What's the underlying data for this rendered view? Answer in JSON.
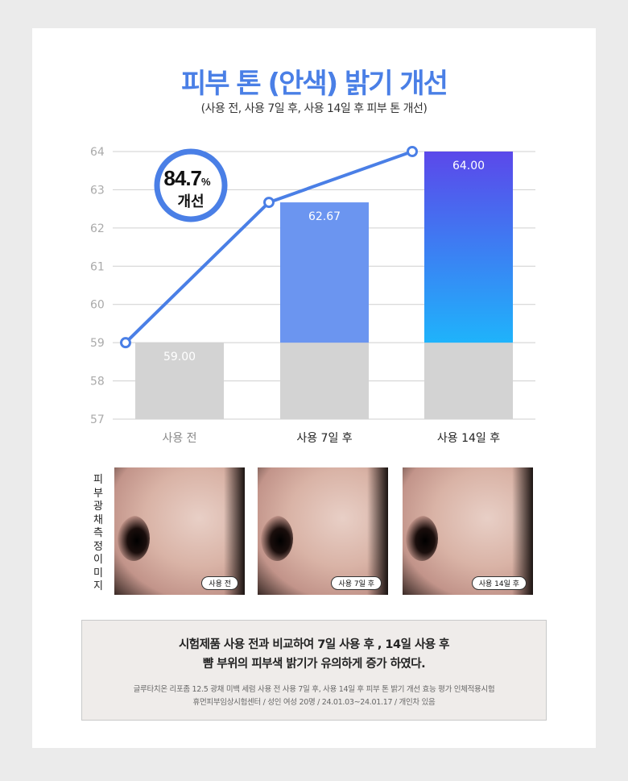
{
  "header": {
    "title": "피부 톤 (안색) 밝기 개선",
    "subtitle": "(사용 전, 사용 7일 후, 사용 14일 후 피부 톤 개선)"
  },
  "badge": {
    "value": "84.7",
    "unit": "%",
    "label": "개선"
  },
  "chart_data": {
    "type": "bar",
    "categories": [
      "사용 전",
      "사용 7일 후",
      "사용 14일 후"
    ],
    "values": [
      59.0,
      62.67,
      64.0
    ],
    "data_labels": [
      "59.00",
      "62.67",
      "64.00"
    ],
    "line_overlay": [
      59.0,
      62.67,
      64.0
    ],
    "ylim": [
      57,
      64
    ],
    "yticks": [
      "57",
      "58",
      "59",
      "60",
      "61",
      "62",
      "63",
      "64"
    ],
    "grid": true,
    "colors": {
      "baseline": "#d3d3d3",
      "bar_7": "#6b95f0",
      "bar_14_top": "#5b48ea",
      "bar_14_bottom": "#1fb3fb",
      "line": "#4a7fe6"
    }
  },
  "images": {
    "side_label": "피부 광채 측정 이미지",
    "tags": [
      "사용 전",
      "사용 7일 후",
      "사용 14일 후"
    ]
  },
  "note": {
    "line1": "시험제품 사용 전과 비교하여 7일 사용 후 , 14일 사용 후",
    "line2": "뺨 부위의 피부색 밝기가 유의하게 증가 하였다.",
    "detail1": "글루타치온 리포좀 12.5 광채 미백 세럼 사용 전 사용 7일 후, 사용 14일 후 피부 톤 밝기 개선 효능 평가 인체적용시험",
    "detail2": "휴먼피부임상시험센터 / 성인 여성 20명 / 24.01.03~24.01.17 / 개인차 있음"
  }
}
